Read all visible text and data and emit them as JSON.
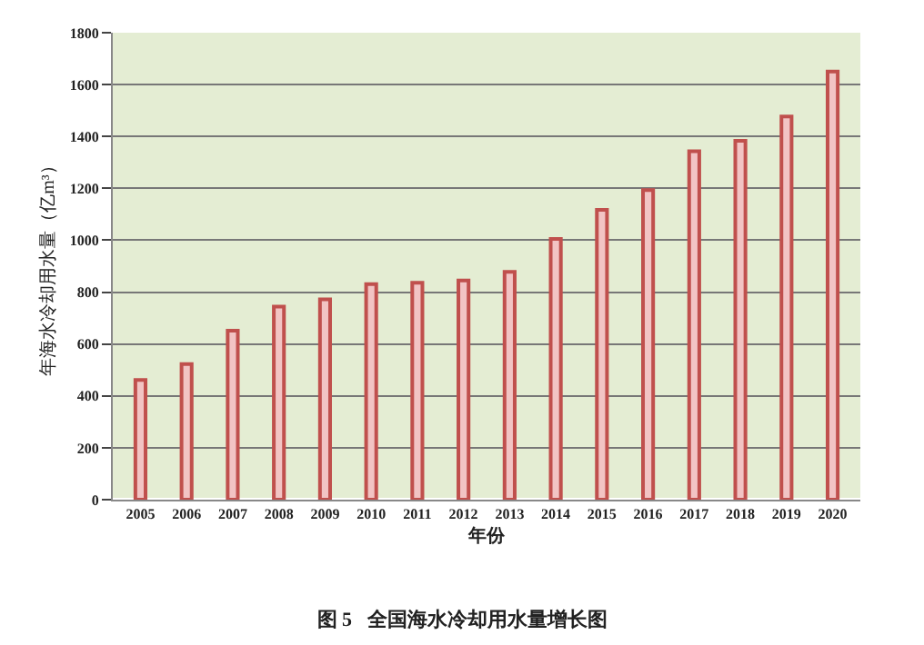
{
  "chart_data": {
    "type": "bar",
    "title": "图 5   全国海水冷却用水量增长图",
    "xlabel": "年份",
    "ylabel": "年海水冷却用水量（亿m³）",
    "categories": [
      "2005",
      "2006",
      "2007",
      "2008",
      "2009",
      "2010",
      "2011",
      "2012",
      "2013",
      "2014",
      "2015",
      "2016",
      "2017",
      "2018",
      "2019",
      "2020"
    ],
    "values": [
      461,
      523,
      651,
      744,
      772,
      831,
      836,
      845,
      878,
      1005,
      1117,
      1193,
      1343,
      1383,
      1477,
      1650
    ],
    "color": "#c0504d",
    "ylim": [
      0,
      1800
    ],
    "yticks": [
      0,
      200,
      400,
      600,
      800,
      1000,
      1200,
      1400,
      1600,
      1800
    ],
    "grid": "y"
  }
}
